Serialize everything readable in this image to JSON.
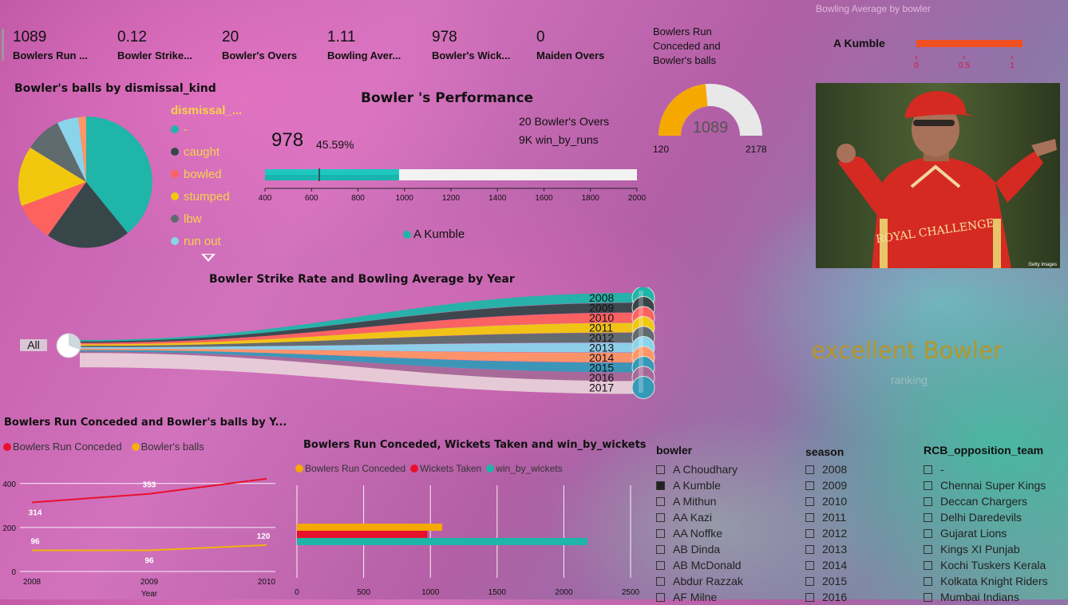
{
  "kpis": [
    {
      "value": "1089",
      "label": "Bowlers Run ..."
    },
    {
      "value": "0.12",
      "label": "Bowler Strike..."
    },
    {
      "value": "20",
      "label": "Bowler's Overs"
    },
    {
      "value": "1.11",
      "label": "Bowling Aver..."
    },
    {
      "value": "978",
      "label": "Bowler's Wick..."
    },
    {
      "value": "0",
      "label": "Maiden Overs"
    }
  ],
  "pie": {
    "title": "Bowler's balls by dismissal_kind",
    "legend_title": "dismissal_...",
    "legend": [
      {
        "name": "-",
        "color": "#1fb5a8"
      },
      {
        "name": "caught",
        "color": "#374649"
      },
      {
        "name": "bowled",
        "color": "#fd625e"
      },
      {
        "name": "stumped",
        "color": "#f2c80f"
      },
      {
        "name": "lbw",
        "color": "#5f6b6d"
      },
      {
        "name": "run out",
        "color": "#8ad4eb"
      }
    ]
  },
  "performance": {
    "title": "Bowler 's Performance",
    "value": "978",
    "percent": "45.59%",
    "overs": "20 Bowler's Overs",
    "win": "9K win_by_runs",
    "legend": "A Kumble",
    "axis": [
      "400",
      "600",
      "800",
      "1000",
      "1200",
      "1400",
      "1600",
      "1800",
      "2000"
    ]
  },
  "gauge": {
    "title": "Bowlers Run Conceded and Bowler's balls",
    "value": "1089",
    "min": "120",
    "max": "2178",
    "fraction": 0.47
  },
  "bowling_avg": {
    "title": "Bowling Average by bowler",
    "name": "A Kumble",
    "ticks": [
      "0",
      "0.5",
      "1"
    ],
    "fraction": 1.11
  },
  "decomp": {
    "title": "Bowler Strike Rate and Bowling Average by Year",
    "root": "All",
    "years": [
      "2008",
      "2009",
      "2010",
      "2011",
      "2012",
      "2013",
      "2014",
      "2015",
      "2016",
      "2017"
    ]
  },
  "card": {
    "value": "excellent Bowler",
    "label": "ranking"
  },
  "line_chart": {
    "title": "Bowlers Run Conceded and Bowler's balls by Y...",
    "legend": [
      "Bowlers Run Conceded",
      "Bowler's balls"
    ],
    "xlabel": "Year",
    "x_ticks": [
      "2008",
      "2009",
      "2010"
    ],
    "y_ticks": [
      "0",
      "200",
      "400"
    ]
  },
  "bar_chart": {
    "title": "Bowlers Run Conceded, Wickets Taken and win_by_wickets",
    "legend": [
      "Bowlers Run Conceded",
      "Wickets Taken",
      "win_by_wickets"
    ],
    "x_ticks": [
      "0",
      "500",
      "1000",
      "1500",
      "2000",
      "2500"
    ]
  },
  "chart_data": [
    {
      "type": "line",
      "title": "Bowlers Run Conceded and Bowler's balls by Y...",
      "x": [
        "2008",
        "2009",
        "2010"
      ],
      "xlabel": "Year",
      "ylim": [
        0,
        450
      ],
      "series": [
        {
          "name": "Bowlers Run Conceded",
          "values": [
            314,
            353,
            422
          ],
          "color": "#e8112d"
        },
        {
          "name": "Bowler's balls",
          "values": [
            96,
            96,
            120
          ],
          "color": "#f2b10f"
        }
      ]
    },
    {
      "type": "bar",
      "title": "Bowlers Run Conceded, Wickets Taken and win_by_wickets",
      "xlim": [
        0,
        2500
      ],
      "series": [
        {
          "name": "Bowlers Run Conceded",
          "values": [
            1089
          ],
          "color": "#f5a800"
        },
        {
          "name": "Wickets Taken",
          "values": [
            978
          ],
          "color": "#e8112d"
        },
        {
          "name": "win_by_wickets",
          "values": [
            2178
          ],
          "color": "#1fb5a8"
        }
      ]
    }
  ],
  "slicers": {
    "bowler": {
      "title": "bowler",
      "items": [
        "A Choudhary",
        "A Kumble",
        "A Mithun",
        "AA Kazi",
        "AA Noffke",
        "AB Dinda",
        "AB McDonald",
        "Abdur Razzak",
        "AF Milne"
      ],
      "selected": "A Kumble"
    },
    "season": {
      "title": "season",
      "items": [
        "2008",
        "2009",
        "2010",
        "2011",
        "2012",
        "2013",
        "2014",
        "2015",
        "2016"
      ]
    },
    "team": {
      "title": "RCB_opposition_team",
      "items": [
        "-",
        "Chennai Super Kings",
        "Deccan Chargers",
        "Delhi Daredevils",
        "Gujarat Lions",
        "Kings XI Punjab",
        "Kochi Tuskers Kerala",
        "Kolkata Knight Riders",
        "Mumbai Indians"
      ]
    }
  },
  "photo": {
    "caption": "Getty Images",
    "jersey": "ROYAL CHALLENGE"
  }
}
